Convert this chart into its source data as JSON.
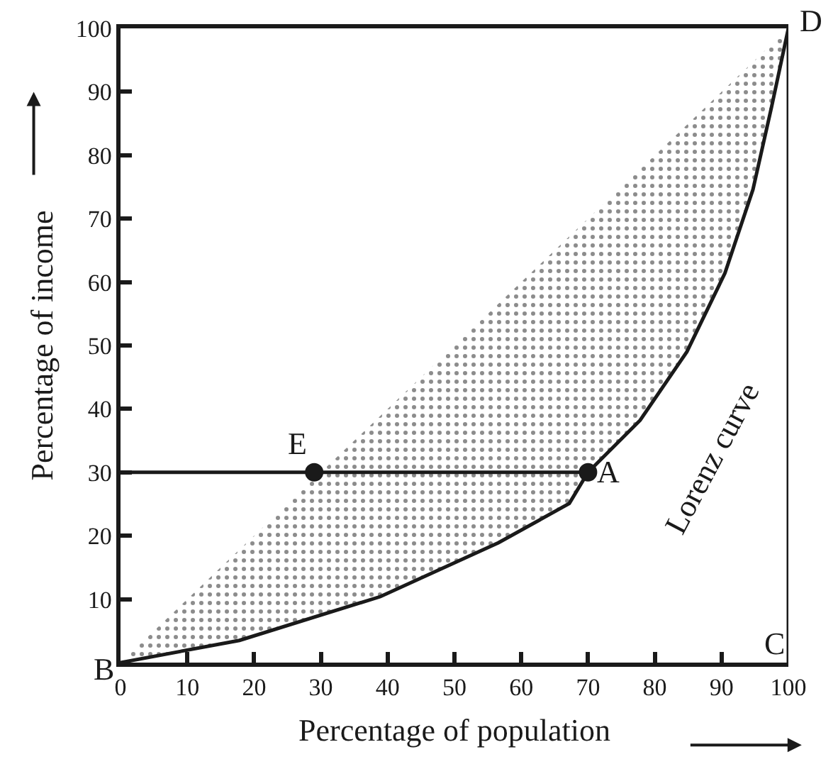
{
  "chart_data": {
    "type": "line",
    "xlabel": "Percentage of population",
    "ylabel": "Percentage of income",
    "xlim": [
      0,
      100
    ],
    "ylim": [
      0,
      100
    ],
    "xticks": [
      0,
      10,
      20,
      30,
      40,
      50,
      60,
      70,
      80,
      90,
      100
    ],
    "yticks": [
      10,
      20,
      30,
      40,
      50,
      60,
      70,
      80,
      90,
      100
    ],
    "legend": false,
    "series": [
      {
        "name": "Lorenz curve",
        "color": "#1a1a1a",
        "x": [
          0,
          17.8,
          38.9,
          56.6,
          67.2,
          70,
          77.8,
          84.8,
          90.5,
          94.7,
          97.5,
          100
        ],
        "values": [
          0,
          3.5,
          10.4,
          18.9,
          25.1,
          30,
          38.2,
          49,
          61.4,
          74.6,
          87.7,
          100
        ],
        "lower": [
          0,
          3.5,
          10.4,
          18.9,
          25.1,
          30,
          38.2,
          49,
          61.4,
          74.6,
          87.7,
          100
        ],
        "upper": [
          0,
          17.8,
          38.9,
          56.6,
          67.2,
          70,
          77.8,
          84.8,
          90.5,
          94.7,
          97.5,
          100
        ]
      },
      {
        "color": "#1a1a1a",
        "x": [
          0,
          70
        ],
        "values": [
          30,
          30
        ]
      },
      {
        "type": "scatter",
        "color": "#1a1a1a",
        "marker": "circle",
        "x": [
          29,
          70
        ],
        "values": [
          30,
          30
        ]
      }
    ],
    "ref_lines": [
      {
        "axis": "x",
        "value": 100,
        "color": "#1a1a1a"
      }
    ],
    "annotations": [
      {
        "text": "E",
        "x": 29,
        "y": 30
      },
      {
        "text": "A",
        "x": 70,
        "y": 30
      },
      {
        "text": "B",
        "x": 0,
        "y": 0
      },
      {
        "text": "C",
        "x": 100,
        "y": 0
      },
      {
        "text": "D",
        "x": 100,
        "y": 100
      }
    ]
  }
}
